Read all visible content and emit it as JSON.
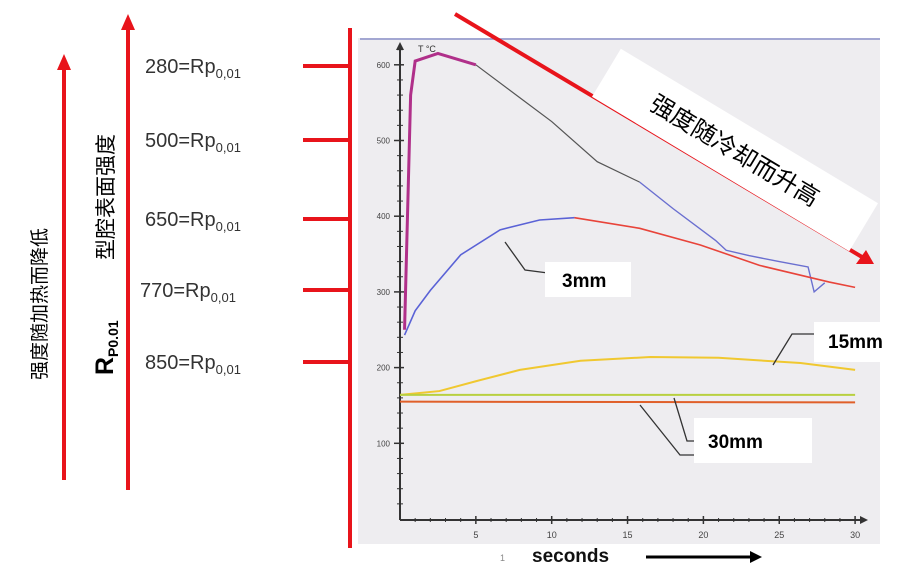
{
  "annotations": {
    "left_arrow_text": "强度随加热而降低",
    "mid_arrow_text": "型腔表面强度",
    "rp_symbol": "R",
    "rp_subscript": "P0.01",
    "levels": [
      {
        "value": "280=Rp",
        "sub": "0,01"
      },
      {
        "value": "500=Rp",
        "sub": "0,01"
      },
      {
        "value": "650=Rp",
        "sub": "0,01"
      },
      {
        "value": "770=Rp",
        "sub": "0,01"
      },
      {
        "value": "850=Rp",
        "sub": "0,01"
      }
    ],
    "diagonal_text": "强度随冷却而升高",
    "accent_color": "#e8141b"
  },
  "chart_data": {
    "type": "line",
    "title": "",
    "xlabel": "seconds",
    "ylabel": "T °C",
    "x_stray_mark": "1",
    "xlim": [
      0,
      30
    ],
    "ylim": [
      0,
      650
    ],
    "xticks": [
      "5",
      "10",
      "15",
      "20",
      "25",
      "30"
    ],
    "yticks": [
      "100",
      "200",
      "300",
      "400",
      "500",
      "600"
    ],
    "grid": false,
    "series": [
      {
        "label_ref": "3mm",
        "part": "surface",
        "color": "#6a6fd0",
        "x": [
          0.3,
          0.7,
          1.0,
          2.5,
          5,
          8,
          10,
          13,
          15.8,
          18,
          20.8,
          21.5,
          23,
          25,
          26.9,
          27.3,
          28
        ],
        "y": [
          250,
          560,
          605,
          615,
          600,
          555,
          525,
          472,
          445,
          410,
          368,
          355,
          348,
          340,
          333,
          300,
          312
        ]
      },
      {
        "label_ref": "3mm",
        "part": "core",
        "color": "#5a62d6",
        "color2": "#e8443a",
        "x": [
          0.3,
          1,
          2,
          4,
          6.6,
          9.2,
          11.5,
          15.8,
          19.8,
          23.7,
          28.3,
          30
        ],
        "y": [
          243,
          275,
          302,
          349,
          382,
          395,
          398,
          384,
          362,
          335,
          313,
          306
        ]
      },
      {
        "label": "15mm",
        "color": "#f0c830",
        "x": [
          0,
          2.6,
          5,
          7.9,
          11.9,
          16.5,
          21,
          26.4,
          30
        ],
        "y": [
          164,
          169,
          182,
          197,
          209,
          214,
          213,
          206,
          197
        ]
      },
      {
        "label_ref": "30mm",
        "part": "core",
        "color": "#b8d040",
        "x": [
          0,
          30
        ],
        "y": [
          164,
          164
        ]
      },
      {
        "label": "30mm",
        "part": "surface",
        "color": "#e0602a",
        "x": [
          0,
          30
        ],
        "y": [
          155,
          154
        ]
      }
    ],
    "labels": [
      "3mm",
      "15mm",
      "30mm"
    ]
  }
}
